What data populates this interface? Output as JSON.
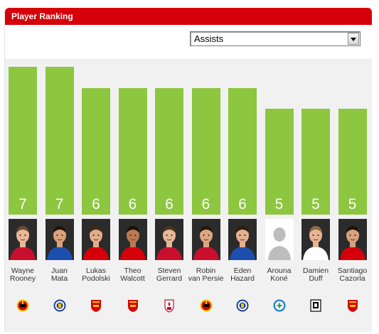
{
  "widget": {
    "title": "Player Ranking",
    "filter": {
      "selected": "Assists"
    }
  },
  "chart_data": {
    "type": "bar",
    "categories": [
      "Wayne Rooney",
      "Juan Mata",
      "Lukas Podolski",
      "Theo Walcott",
      "Steven Gerrard",
      "Robin van Persie",
      "Eden Hazard",
      "Arouna Koné",
      "Damien Duff",
      "Santiago Cazorla"
    ],
    "values": [
      7,
      7,
      6,
      6,
      6,
      6,
      6,
      5,
      5,
      5
    ],
    "ylim": [
      0,
      7
    ],
    "bar_color": "#8dc63f"
  },
  "players": [
    {
      "first": "Wayne",
      "last": "Rooney",
      "value": "7",
      "club_icon": "man-utd-crest-icon",
      "shirt": "#c8102e",
      "skin": "#e8b899",
      "hair": "#6b4a2e",
      "photo": true
    },
    {
      "first": "Juan",
      "last": "Mata",
      "value": "7",
      "club_icon": "chelsea-crest-icon",
      "shirt": "#1c4fae",
      "skin": "#d9a27a",
      "hair": "#1e140c",
      "photo": true
    },
    {
      "first": "Lukas",
      "last": "Podolski",
      "value": "6",
      "club_icon": "arsenal-crest-icon",
      "shirt": "#d6000a",
      "skin": "#e3ac8c",
      "hair": "#3a2a1c",
      "photo": true
    },
    {
      "first": "Theo",
      "last": "Walcott",
      "value": "6",
      "club_icon": "arsenal-crest-icon",
      "shirt": "#d6000a",
      "skin": "#b97a55",
      "hair": "#1b1208",
      "photo": true
    },
    {
      "first": "Steven",
      "last": "Gerrard",
      "value": "6",
      "club_icon": "liverpool-crest-icon",
      "shirt": "#c8102e",
      "skin": "#e6b796",
      "hair": "#4a3220",
      "photo": true
    },
    {
      "first": "Robin",
      "last": "van Persie",
      "value": "6",
      "club_icon": "man-utd-crest-icon",
      "shirt": "#c8102e",
      "skin": "#dda683",
      "hair": "#24170e",
      "photo": true
    },
    {
      "first": "Eden",
      "last": "Hazard",
      "value": "6",
      "club_icon": "chelsea-crest-icon",
      "shirt": "#1c4fae",
      "skin": "#e4b08f",
      "hair": "#2d1e12",
      "photo": true
    },
    {
      "first": "Arouna",
      "last": "Koné",
      "value": "5",
      "club_icon": "wigan-crest-icon",
      "shirt": "#ffffff",
      "skin": "#ffffff",
      "hair": "#ffffff",
      "photo": false
    },
    {
      "first": "Damien",
      "last": "Duff",
      "value": "5",
      "club_icon": "fulham-crest-icon",
      "shirt": "#ffffff",
      "skin": "#e6b594",
      "hair": "#8a6a44",
      "photo": true
    },
    {
      "first": "Santiago",
      "last": "Cazorla",
      "value": "5",
      "club_icon": "arsenal-crest-icon",
      "shirt": "#d6000a",
      "skin": "#d7a17c",
      "hair": "#1e140c",
      "photo": true
    }
  ]
}
